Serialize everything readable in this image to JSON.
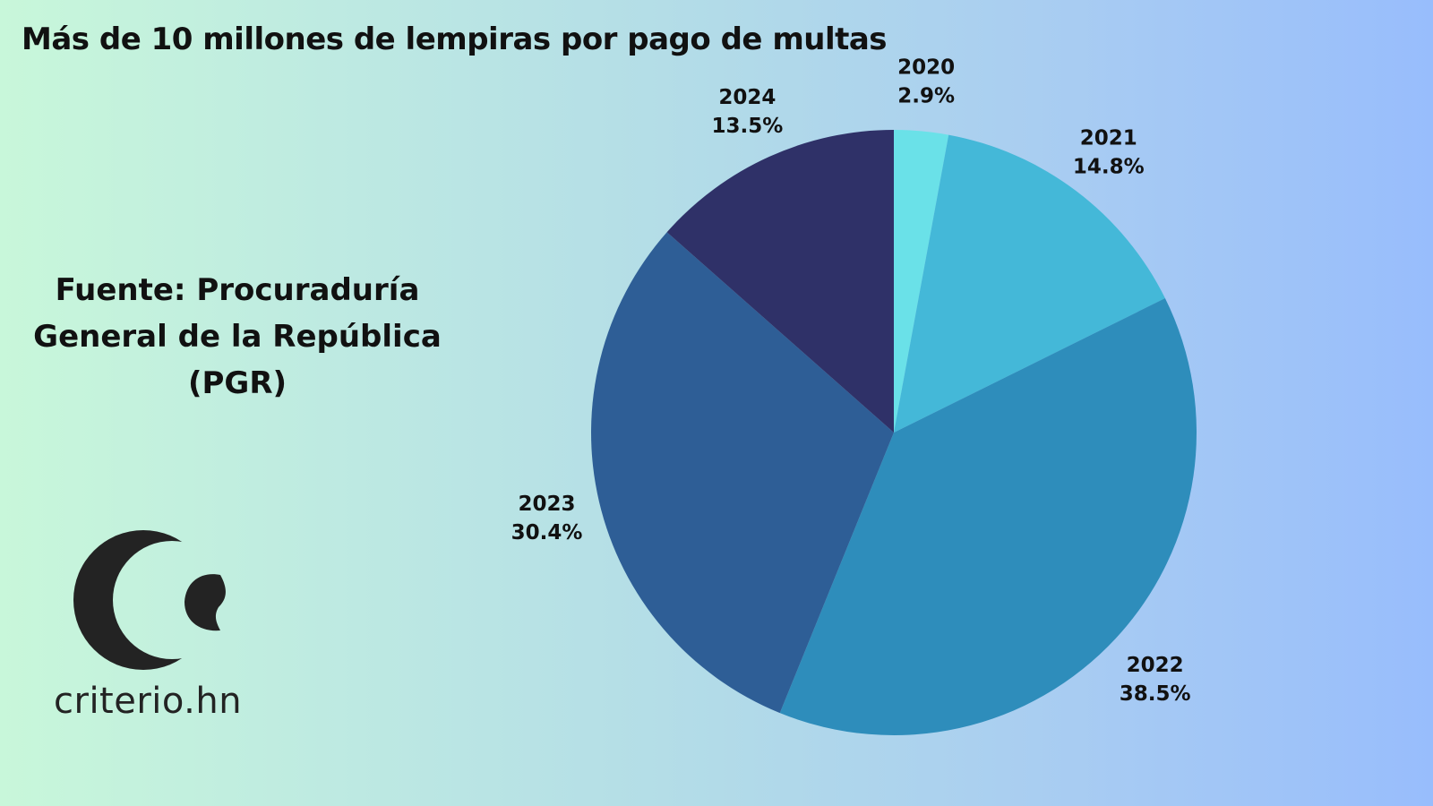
{
  "title": "Más de 10 millones de lempiras por pago de multas",
  "source": [
    "Fuente: Procuraduría",
    "General de la República",
    "(PGR)"
  ],
  "brand": {
    "name": "criterio.hn",
    "logo_icon": "criterio-logo-icon",
    "color": "#232323"
  },
  "chart_data": {
    "type": "pie",
    "title": "Más de 10 millones de lempiras por pago de multas",
    "start_angle_deg": 0,
    "direction": "clockwise",
    "slices": [
      {
        "label": "2020",
        "value": 2.9,
        "display": "2.9%",
        "color": "#6ae1e8"
      },
      {
        "label": "2021",
        "value": 14.8,
        "display": "14.8%",
        "color": "#44b8d8"
      },
      {
        "label": "2022",
        "value": 38.5,
        "display": "38.5%",
        "color": "#2e8dbb"
      },
      {
        "label": "2023",
        "value": 30.4,
        "display": "30.4%",
        "color": "#2e5e96"
      },
      {
        "label": "2024",
        "value": 13.5,
        "display": "13.5%",
        "color": "#2f3168"
      }
    ]
  }
}
